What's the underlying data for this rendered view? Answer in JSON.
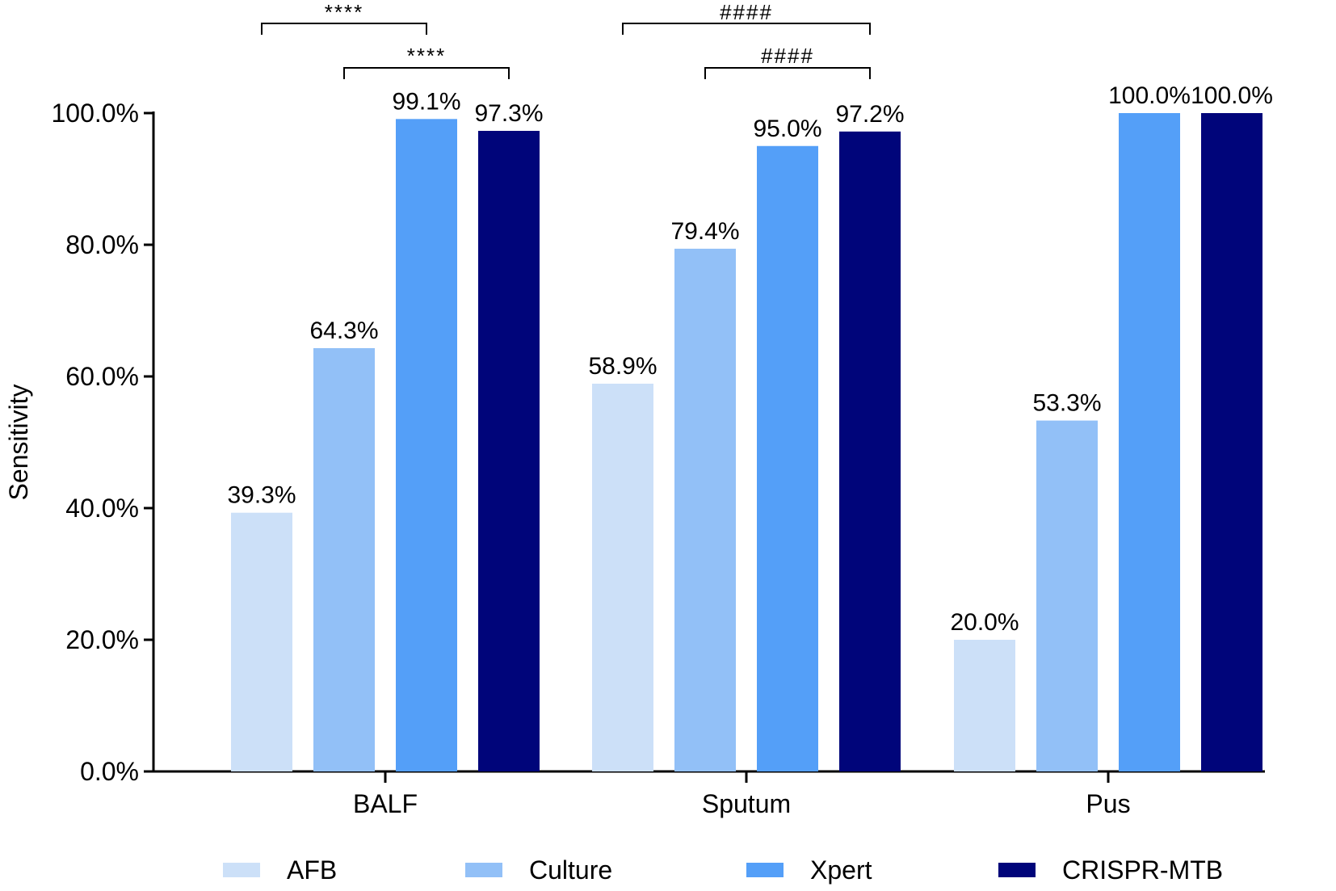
{
  "chart_data": {
    "type": "bar",
    "title": "",
    "xlabel": "",
    "ylabel": "Sensitivity",
    "ylim": [
      0,
      100
    ],
    "yticks": [
      0,
      20,
      40,
      60,
      80,
      100
    ],
    "ytick_labels": [
      "0.0%",
      "20.0%",
      "40.0%",
      "60.0%",
      "80.0%",
      "100.0%"
    ],
    "categories": [
      "BALF",
      "Sputum",
      "Pus"
    ],
    "series": [
      {
        "name": "AFB",
        "color": "#cce0f8",
        "values": [
          39.3,
          58.9,
          20.0
        ],
        "labels": [
          "39.3%",
          "58.9%",
          "20.0%"
        ]
      },
      {
        "name": "Culture",
        "color": "#92c0f7",
        "values": [
          64.3,
          79.4,
          53.3
        ],
        "labels": [
          "64.3%",
          "79.4%",
          "53.3%"
        ]
      },
      {
        "name": "Xpert",
        "color": "#549ff8",
        "values": [
          99.1,
          95.0,
          100.0
        ],
        "labels": [
          "99.1%",
          "95.0%",
          "100.0%"
        ]
      },
      {
        "name": "CRISPR-MTB",
        "color": "#00057a",
        "values": [
          97.3,
          97.2,
          100.0
        ],
        "labels": [
          "97.3%",
          "97.2%",
          "100.0%"
        ]
      }
    ],
    "significance": [
      {
        "category": "BALF",
        "from_series": "AFB",
        "to_series": "Xpert",
        "label": "****",
        "level": 2
      },
      {
        "category": "BALF",
        "from_series": "Culture",
        "to_series": "CRISPR-MTB",
        "label": "****",
        "level": 1
      },
      {
        "category": "Sputum",
        "from_series": "AFB",
        "to_series": "CRISPR-MTB",
        "label": "####",
        "level": 2
      },
      {
        "category": "Sputum",
        "from_series": "Culture",
        "to_series": "CRISPR-MTB",
        "label": "####",
        "level": 1
      }
    ],
    "legend_position": "bottom",
    "grid": false
  }
}
